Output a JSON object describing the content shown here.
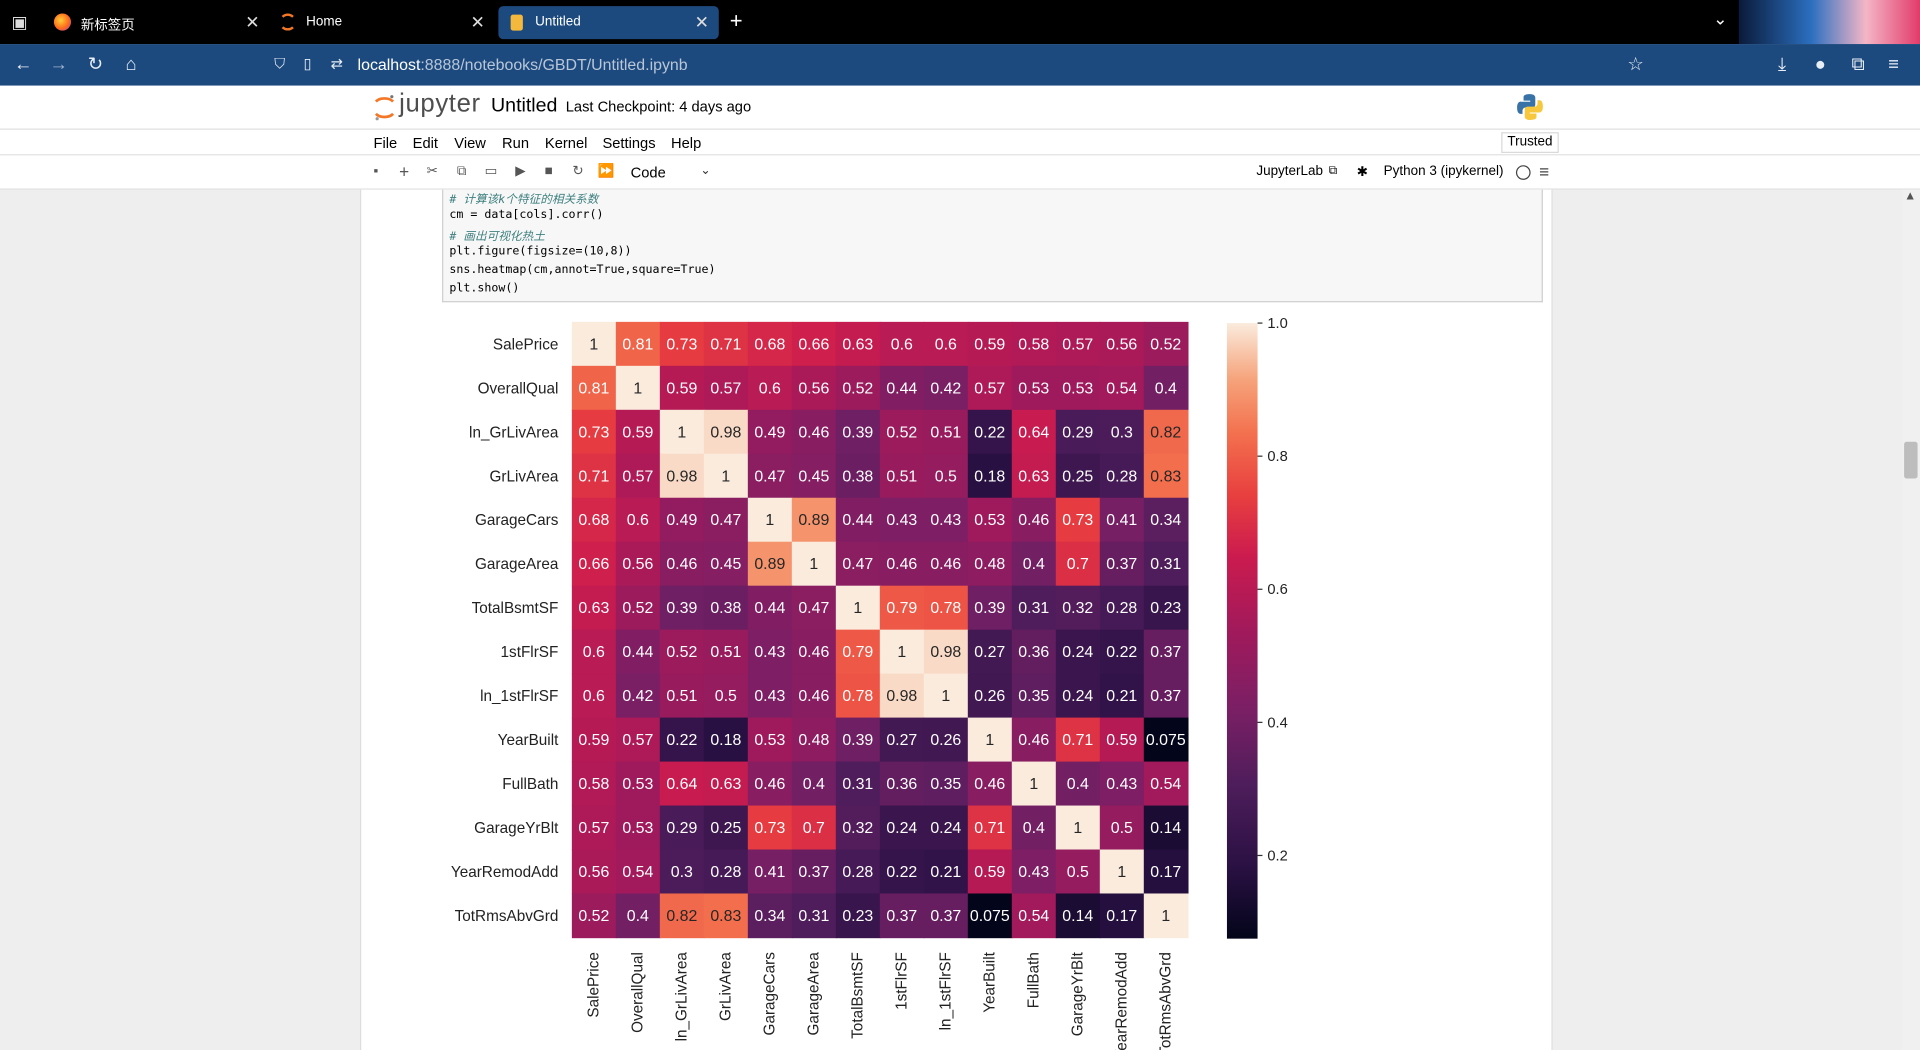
{
  "browser": {
    "tabs": [
      {
        "label": "新标签页",
        "icon": "firefox-icon",
        "active": false
      },
      {
        "label": "Home",
        "icon": "jupyter-icon",
        "active": false
      },
      {
        "label": "Untitled",
        "icon": "notebook-icon",
        "active": true
      }
    ],
    "url_host": "localhost",
    "url_path": ":8888/notebooks/GBDT/Untitled.ipynb"
  },
  "jupyter": {
    "logo_text": "jupyter",
    "title": "Untitled",
    "checkpoint": "Last Checkpoint: 4 days ago",
    "menu": [
      "File",
      "Edit",
      "View",
      "Run",
      "Kernel",
      "Settings",
      "Help"
    ],
    "trusted": "Trusted",
    "cell_type": "Code",
    "jupyterlab_label": "JupyterLab",
    "kernel_label": "Python 3 (ipykernel)"
  },
  "code_lines": [
    "# 计算该k个特征的相关系数",
    "cm = data[cols].corr()",
    "# 画出可视化热土",
    "plt.figure(figsize=(10,8))",
    "sns.heatmap(cm,annot=True,square=True)",
    "plt.show()"
  ],
  "chart_data": {
    "type": "heatmap",
    "title": "",
    "xlabel": "",
    "ylabel": "",
    "labels": [
      "SalePrice",
      "OverallQual",
      "ln_GrLivArea",
      "GrLivArea",
      "GarageCars",
      "GarageArea",
      "TotalBsmtSF",
      "1stFlrSF",
      "ln_1stFlrSF",
      "YearBuilt",
      "FullBath",
      "GarageYrBlt",
      "YearRemodAdd",
      "TotRmsAbvGrd"
    ],
    "matrix": [
      [
        1,
        0.81,
        0.73,
        0.71,
        0.68,
        0.66,
        0.63,
        0.6,
        0.6,
        0.59,
        0.58,
        0.57,
        0.56,
        0.52
      ],
      [
        0.81,
        1,
        0.59,
        0.57,
        0.6,
        0.56,
        0.52,
        0.44,
        0.42,
        0.57,
        0.53,
        0.53,
        0.54,
        0.4
      ],
      [
        0.73,
        0.59,
        1,
        0.98,
        0.49,
        0.46,
        0.39,
        0.52,
        0.51,
        0.22,
        0.64,
        0.29,
        0.3,
        0.82
      ],
      [
        0.71,
        0.57,
        0.98,
        1,
        0.47,
        0.45,
        0.38,
        0.51,
        0.5,
        0.18,
        0.63,
        0.25,
        0.28,
        0.83
      ],
      [
        0.68,
        0.6,
        0.49,
        0.47,
        1,
        0.89,
        0.44,
        0.43,
        0.43,
        0.53,
        0.46,
        0.73,
        0.41,
        0.34
      ],
      [
        0.66,
        0.56,
        0.46,
        0.45,
        0.89,
        1,
        0.47,
        0.46,
        0.46,
        0.48,
        0.4,
        0.7,
        0.37,
        0.31
      ],
      [
        0.63,
        0.52,
        0.39,
        0.38,
        0.44,
        0.47,
        1,
        0.79,
        0.78,
        0.39,
        0.31,
        0.32,
        0.28,
        0.23
      ],
      [
        0.6,
        0.44,
        0.52,
        0.51,
        0.43,
        0.46,
        0.79,
        1,
        0.98,
        0.27,
        0.36,
        0.24,
        0.22,
        0.37
      ],
      [
        0.6,
        0.42,
        0.51,
        0.5,
        0.43,
        0.46,
        0.78,
        0.98,
        1,
        0.26,
        0.35,
        0.24,
        0.21,
        0.37
      ],
      [
        0.59,
        0.57,
        0.22,
        0.18,
        0.53,
        0.48,
        0.39,
        0.27,
        0.26,
        1,
        0.46,
        0.71,
        0.59,
        0.075
      ],
      [
        0.58,
        0.53,
        0.64,
        0.63,
        0.46,
        0.4,
        0.31,
        0.36,
        0.35,
        0.46,
        1,
        0.4,
        0.43,
        0.54
      ],
      [
        0.57,
        0.53,
        0.29,
        0.25,
        0.73,
        0.7,
        0.32,
        0.24,
        0.24,
        0.71,
        0.4,
        1,
        0.5,
        0.14
      ],
      [
        0.56,
        0.54,
        0.3,
        0.28,
        0.41,
        0.37,
        0.28,
        0.22,
        0.21,
        0.59,
        0.43,
        0.5,
        1,
        0.17
      ],
      [
        0.52,
        0.4,
        0.82,
        0.83,
        0.34,
        0.31,
        0.23,
        0.37,
        0.37,
        0.075,
        0.54,
        0.14,
        0.17,
        1
      ]
    ],
    "colorbar": {
      "ticks": [
        "0.2",
        "0.4",
        "0.6",
        "0.8",
        "1.0"
      ],
      "range": [
        0.075,
        1.0
      ],
      "colormap": "rocket"
    },
    "annot": true,
    "grid": false
  }
}
